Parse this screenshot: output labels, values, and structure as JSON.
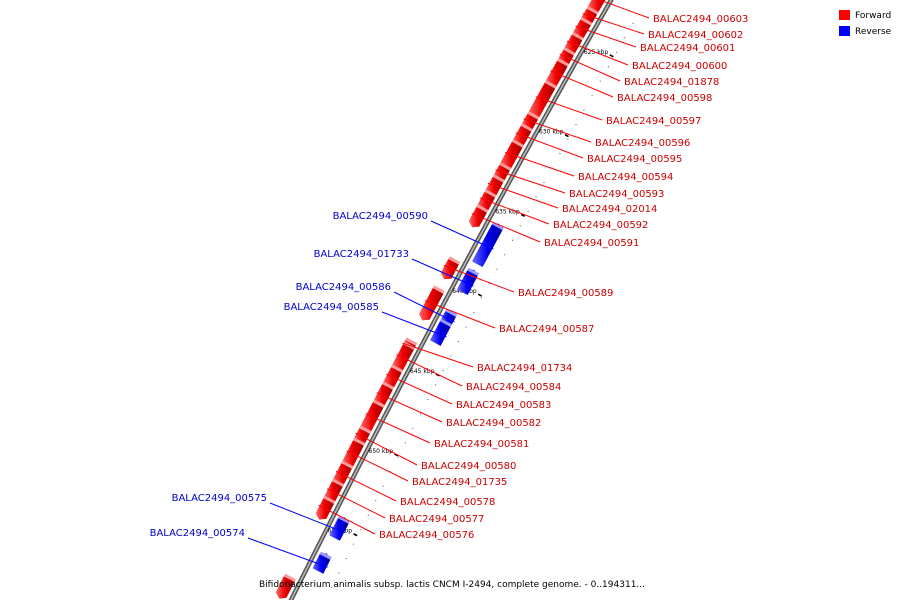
{
  "legend": {
    "forward": {
      "label": "Forward",
      "color": "#ff0000"
    },
    "reverse": {
      "label": "Reverse",
      "color": "#0000ff"
    }
  },
  "caption": "Bifidobacterium animalis subsp. lactis CNCM I-2494, complete genome. - 0..194311...",
  "ticks": [
    {
      "label": "625 kbp",
      "kbp": 625
    },
    {
      "label": "630 kbp",
      "kbp": 630
    },
    {
      "label": "635 kbp",
      "kbp": 635
    },
    {
      "label": "640 kbp",
      "kbp": 640
    },
    {
      "label": "645 kbp",
      "kbp": 645
    },
    {
      "label": "650 kbp",
      "kbp": 650
    },
    {
      "label": "655 kbp",
      "kbp": 655
    }
  ],
  "forward_genes": [
    "BALAC2494_00603",
    "BALAC2494_00602",
    "BALAC2494_00601",
    "BALAC2494_00600",
    "BALAC2494_01878",
    "BALAC2494_00598",
    "BALAC2494_00597",
    "BALAC2494_00596",
    "BALAC2494_00595",
    "BALAC2494_00594",
    "BALAC2494_00593",
    "BALAC2494_02014",
    "BALAC2494_00592",
    "BALAC2494_00591",
    "BALAC2494_00589",
    "BALAC2494_00587",
    "BALAC2494_01734",
    "BALAC2494_00584",
    "BALAC2494_00583",
    "BALAC2494_00582",
    "BALAC2494_00581",
    "BALAC2494_00580",
    "BALAC2494_01735",
    "BALAC2494_00578",
    "BALAC2494_00577",
    "BALAC2494_00576"
  ],
  "reverse_genes": [
    "BALAC2494_00590",
    "BALAC2494_01733",
    "BALAC2494_00586",
    "BALAC2494_00585",
    "BALAC2494_00575",
    "BALAC2494_00574"
  ]
}
